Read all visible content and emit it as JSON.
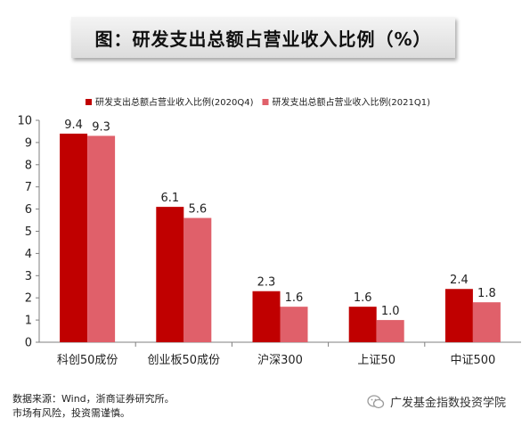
{
  "title": "图：研发支出总额占营业收入比例（%）",
  "footnotes": {
    "source": "数据来源：Wind，浙商证券研究所。",
    "risk": "市场有风险，投资需谨慎。"
  },
  "brand": {
    "text": "广发基金指数投资学院",
    "icon": "wechat-icon"
  },
  "colors": {
    "series1": "#c00000",
    "series2": "#e0606a",
    "axis": "#7f7f7f"
  },
  "chart_data": {
    "type": "bar",
    "categories": [
      "科创50成份",
      "创业板50成份",
      "沪深300",
      "上证50",
      "中证500"
    ],
    "series": [
      {
        "name": "研发支出总额占营业收入比例(2020Q4)",
        "values": [
          9.4,
          6.1,
          2.3,
          1.6,
          2.4
        ]
      },
      {
        "name": "研发支出总额占营业收入比例(2021Q1)",
        "values": [
          9.3,
          5.6,
          1.6,
          1.0,
          1.8
        ]
      }
    ],
    "value_labels": [
      [
        "9.4",
        "6.1",
        "2.3",
        "1.6",
        "2.4"
      ],
      [
        "9.3",
        "5.6",
        "1.6",
        "1.0",
        "1.8"
      ]
    ],
    "ylim": [
      0,
      10
    ],
    "yticks": [
      "0",
      "1",
      "2",
      "3",
      "4",
      "5",
      "6",
      "7",
      "8",
      "9",
      "10"
    ],
    "xlabel": "",
    "ylabel": "",
    "grid": false,
    "legend_position": "top"
  }
}
